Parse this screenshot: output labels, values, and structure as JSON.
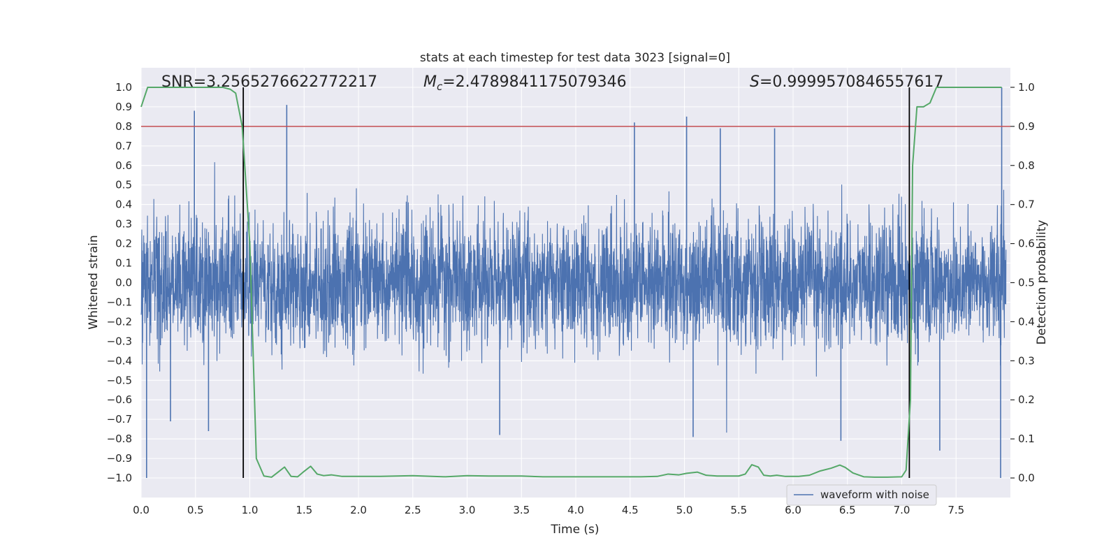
{
  "chart_data": {
    "type": "line",
    "title": "stats at each timestep for test data 3023 [signal=0]",
    "xlabel": "Time (s)",
    "ylabel": "Whitened strain",
    "y2label": "Detection probability",
    "xlim": [
      0.0,
      8.0
    ],
    "ylim": [
      -1.1,
      1.1
    ],
    "y2lim": [
      -0.05,
      1.05
    ],
    "x_ticks": [
      "0.0",
      "0.5",
      "1.0",
      "1.5",
      "2.0",
      "2.5",
      "3.0",
      "3.5",
      "4.0",
      "4.5",
      "5.0",
      "5.5",
      "6.0",
      "6.5",
      "7.0",
      "7.5"
    ],
    "y_ticks": [
      "1.0",
      "0.9",
      "0.8",
      "0.7",
      "0.6",
      "0.5",
      "0.4",
      "0.3",
      "0.2",
      "0.1",
      "0.0",
      "-0.1",
      "-0.2",
      "-0.3",
      "-0.4",
      "-0.5",
      "-0.6",
      "-0.7",
      "-0.8",
      "-0.9",
      "-1.0"
    ],
    "y2_ticks": [
      "1.0",
      "0.9",
      "0.8",
      "0.7",
      "0.6",
      "0.5",
      "0.4",
      "0.3",
      "0.2",
      "0.1",
      "0.0"
    ],
    "threshold": {
      "value": 0.9,
      "axis": "y2",
      "color": "#c44e52"
    },
    "vertical_lines": [
      0.94,
      7.07
    ],
    "annotations": {
      "snr": "SNR=3.2565276622772217",
      "mc_symbol": "M",
      "mc_sub": "c",
      "mc_value": "=2.4789841175079346",
      "s_symbol": "S",
      "s_value": "=0.9999570846557617"
    },
    "series": [
      {
        "name": "waveform with noise",
        "axis": "y",
        "color": "#4c72b0",
        "kind": "noise",
        "sigma": 0.16,
        "notable_peaks": [
          [
            0.49,
            0.88
          ],
          [
            1.34,
            0.91
          ],
          [
            4.54,
            0.82
          ],
          [
            5.02,
            0.85
          ],
          [
            5.33,
            0.79
          ],
          [
            5.83,
            0.79
          ],
          [
            7.92,
            1.0
          ],
          [
            0.05,
            -1.0
          ],
          [
            7.91,
            -1.0
          ],
          [
            3.3,
            -0.78
          ],
          [
            5.08,
            -0.79
          ],
          [
            7.35,
            -0.86
          ],
          [
            6.44,
            -0.81
          ],
          [
            0.62,
            -0.76
          ],
          [
            0.27,
            -0.71
          ]
        ]
      },
      {
        "name": "detection probability",
        "axis": "y2",
        "color": "#55a868",
        "x": [
          0.0,
          0.06,
          0.2,
          0.4,
          0.6,
          0.75,
          0.82,
          0.87,
          0.93,
          1.0,
          1.06,
          1.13,
          1.2,
          1.26,
          1.32,
          1.38,
          1.44,
          1.5,
          1.56,
          1.62,
          1.68,
          1.75,
          1.85,
          2.0,
          2.2,
          2.5,
          2.8,
          3.0,
          3.2,
          3.5,
          3.7,
          4.0,
          4.3,
          4.6,
          4.75,
          4.85,
          4.95,
          5.02,
          5.12,
          5.2,
          5.3,
          5.5,
          5.56,
          5.62,
          5.68,
          5.73,
          5.79,
          5.85,
          5.93,
          6.05,
          6.15,
          6.25,
          6.35,
          6.43,
          6.48,
          6.55,
          6.65,
          6.75,
          6.85,
          7.0,
          7.04,
          7.08,
          7.1,
          7.14,
          7.2,
          7.26,
          7.32,
          7.5,
          7.7,
          7.92
        ],
        "values": [
          0.95,
          1.0,
          1.0,
          1.0,
          1.0,
          1.0,
          0.995,
          0.985,
          0.9,
          0.6,
          0.05,
          0.005,
          0.002,
          0.015,
          0.028,
          0.004,
          0.003,
          0.017,
          0.03,
          0.01,
          0.006,
          0.008,
          0.004,
          0.004,
          0.004,
          0.006,
          0.003,
          0.006,
          0.005,
          0.005,
          0.003,
          0.003,
          0.003,
          0.003,
          0.004,
          0.01,
          0.008,
          0.012,
          0.015,
          0.007,
          0.005,
          0.005,
          0.01,
          0.034,
          0.028,
          0.007,
          0.005,
          0.007,
          0.004,
          0.004,
          0.007,
          0.018,
          0.025,
          0.033,
          0.027,
          0.013,
          0.003,
          0.002,
          0.002,
          0.003,
          0.02,
          0.2,
          0.8,
          0.95,
          0.95,
          0.96,
          1.0,
          1.0,
          1.0,
          1.0
        ]
      }
    ],
    "legend": {
      "label": "waveform with noise",
      "placement": "lower-center-right"
    }
  }
}
